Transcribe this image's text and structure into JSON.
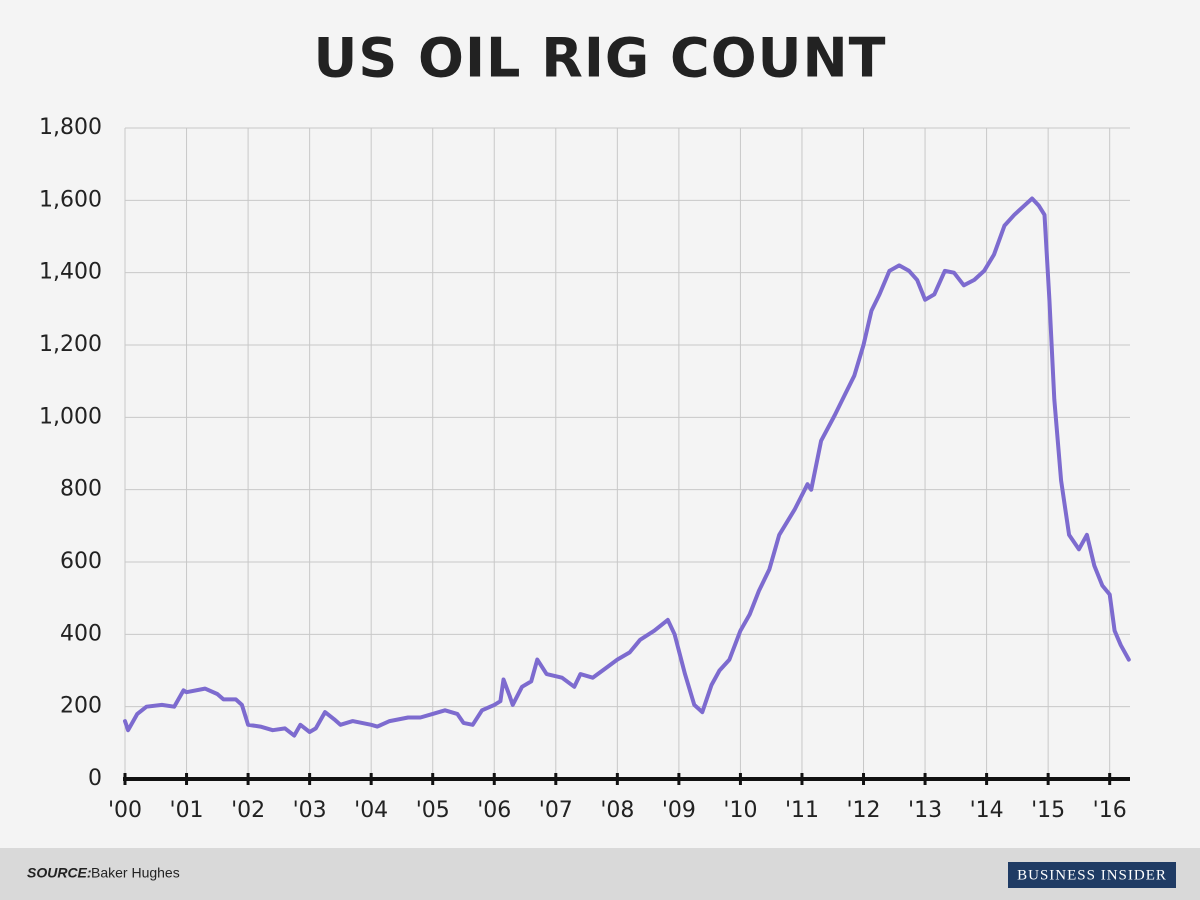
{
  "chart_data": {
    "type": "line",
    "title": "US OIL RIG COUNT",
    "x": [
      2000.0,
      2000.05,
      2000.2,
      2000.35,
      2000.6,
      2000.8,
      2000.95,
      2001.0,
      2001.3,
      2001.5,
      2001.6,
      2001.8,
      2001.9,
      2002.0,
      2002.2,
      2002.4,
      2002.6,
      2002.75,
      2002.85,
      2003.0,
      2003.1,
      2003.25,
      2003.4,
      2003.5,
      2003.7,
      2004.0,
      2004.1,
      2004.3,
      2004.6,
      2004.8,
      2005.0,
      2005.2,
      2005.4,
      2005.5,
      2005.65,
      2005.8,
      2006.0,
      2006.1,
      2006.15,
      2006.25,
      2006.3,
      2006.45,
      2006.6,
      2006.7,
      2006.85,
      2007.1,
      2007.3,
      2007.4,
      2007.6,
      2007.8,
      2008.0,
      2008.2,
      2008.37,
      2008.6,
      2008.82,
      2008.93,
      2009.1,
      2009.25,
      2009.38,
      2009.53,
      2009.66,
      2009.82,
      2010.0,
      2010.15,
      2010.3,
      2010.47,
      2010.63,
      2010.88,
      2011.09,
      2011.15,
      2011.31,
      2011.53,
      2011.69,
      2011.85,
      2012.0,
      2012.13,
      2012.26,
      2012.42,
      2012.58,
      2012.74,
      2012.87,
      2013.0,
      2013.15,
      2013.32,
      2013.47,
      2013.63,
      2013.8,
      2013.96,
      2014.12,
      2014.29,
      2014.45,
      2014.61,
      2014.74,
      2014.85,
      2014.94,
      2015.02,
      2015.1,
      2015.21,
      2015.34,
      2015.5,
      2015.63,
      2015.75,
      2015.88,
      2016.0,
      2016.08,
      2016.18,
      2016.31
    ],
    "values": [
      160,
      135,
      180,
      200,
      205,
      200,
      245,
      240,
      250,
      235,
      220,
      220,
      205,
      150,
      145,
      135,
      140,
      120,
      150,
      130,
      140,
      185,
      165,
      150,
      160,
      150,
      145,
      160,
      170,
      170,
      180,
      190,
      180,
      155,
      150,
      190,
      205,
      215,
      275,
      230,
      205,
      255,
      270,
      330,
      290,
      280,
      255,
      290,
      280,
      305,
      330,
      350,
      385,
      410,
      440,
      400,
      290,
      205,
      185,
      260,
      300,
      330,
      410,
      455,
      520,
      580,
      675,
      745,
      815,
      800,
      935,
      1005,
      1060,
      1115,
      1200,
      1295,
      1340,
      1405,
      1420,
      1405,
      1380,
      1325,
      1340,
      1405,
      1400,
      1365,
      1380,
      1405,
      1450,
      1530,
      1560,
      1585,
      1605,
      1585,
      1560,
      1325,
      1050,
      825,
      675,
      635,
      675,
      590,
      535,
      510,
      410,
      370,
      330
    ],
    "color": "#7d6bcf",
    "xlim": [
      2000,
      2016.33
    ],
    "xticks": [
      {
        "value": 2000,
        "label": "'00"
      },
      {
        "value": 2001,
        "label": "'01"
      },
      {
        "value": 2002,
        "label": "'02"
      },
      {
        "value": 2003,
        "label": "'03"
      },
      {
        "value": 2004,
        "label": "'04"
      },
      {
        "value": 2005,
        "label": "'05"
      },
      {
        "value": 2006,
        "label": "'06"
      },
      {
        "value": 2007,
        "label": "'07"
      },
      {
        "value": 2008,
        "label": "'08"
      },
      {
        "value": 2009,
        "label": "'09"
      },
      {
        "value": 2010,
        "label": "'10"
      },
      {
        "value": 2011,
        "label": "'11"
      },
      {
        "value": 2012,
        "label": "'12"
      },
      {
        "value": 2013,
        "label": "'13"
      },
      {
        "value": 2014,
        "label": "'14"
      },
      {
        "value": 2015,
        "label": "'15"
      },
      {
        "value": 2016,
        "label": "'16"
      }
    ],
    "ylim": [
      0,
      1800
    ],
    "yticks": [
      0,
      200,
      400,
      600,
      800,
      {
        "value": 1000,
        "label": "1,000"
      },
      {
        "value": 1200,
        "label": "1,200"
      },
      {
        "value": 1400,
        "label": "1,400"
      },
      {
        "value": 1600,
        "label": "1,600"
      },
      {
        "value": 1800,
        "label": "1,800"
      }
    ],
    "grid": true,
    "source_label": "SOURCE:",
    "source": "Baker Hughes",
    "brand": "BUSINESS INSIDER"
  }
}
